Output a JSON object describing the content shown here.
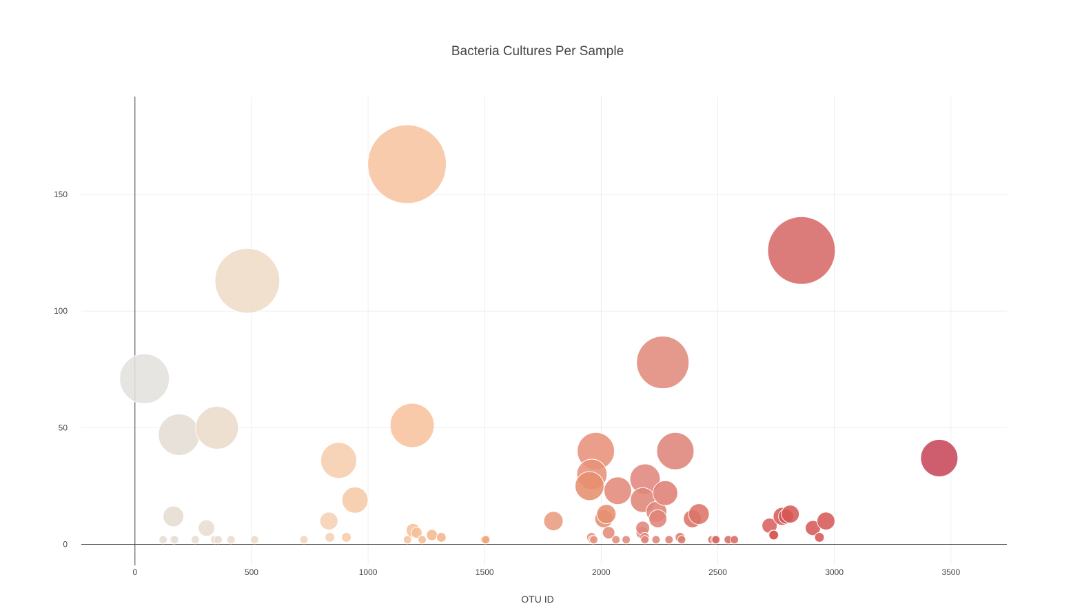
{
  "chart_data": {
    "type": "scatter",
    "title": "Bacteria Cultures Per Sample",
    "xlabel": "OTU ID",
    "ylabel": "",
    "xlim": [
      -230,
      3740
    ],
    "ylim": [
      -9,
      192
    ],
    "xticks": [
      0,
      500,
      1000,
      1500,
      2000,
      2500,
      3000,
      3500
    ],
    "yticks": [
      0,
      50,
      100,
      150
    ],
    "grid": true,
    "legend": "none",
    "marker_style": "bubble",
    "colorscale_extremes": [
      "#e6e6e6",
      "#c0304a"
    ],
    "points": [
      {
        "x": 41,
        "y": 71,
        "r": 36,
        "color": "#e3e1de"
      },
      {
        "x": 165,
        "y": 12,
        "r": 15,
        "color": "#e6ddd3"
      },
      {
        "x": 189,
        "y": 47,
        "r": 30,
        "color": "#e5ddd4"
      },
      {
        "x": 307,
        "y": 7,
        "r": 12,
        "color": "#e9ddd1"
      },
      {
        "x": 352,
        "y": 50,
        "r": 31,
        "color": "#ecdcca"
      },
      {
        "x": 482,
        "y": 113,
        "r": 47,
        "color": "#f0dcc8"
      },
      {
        "x": 121,
        "y": 2,
        "r": 6,
        "color": "#e7ded5"
      },
      {
        "x": 165,
        "y": 2,
        "r": 6,
        "color": "#e7ded5"
      },
      {
        "x": 170,
        "y": 2,
        "r": 6,
        "color": "#e7ded5"
      },
      {
        "x": 259,
        "y": 2,
        "r": 6,
        "color": "#e8ddd2"
      },
      {
        "x": 342,
        "y": 2,
        "r": 6,
        "color": "#eadccf"
      },
      {
        "x": 357,
        "y": 2,
        "r": 6,
        "color": "#eadccf"
      },
      {
        "x": 412,
        "y": 2,
        "r": 6,
        "color": "#ecdbcc"
      },
      {
        "x": 513,
        "y": 2,
        "r": 6,
        "color": "#eed9c7"
      },
      {
        "x": 725,
        "y": 2,
        "r": 6,
        "color": "#f2d5bd"
      },
      {
        "x": 832,
        "y": 10,
        "r": 13,
        "color": "#f5d0b4"
      },
      {
        "x": 836,
        "y": 3,
        "r": 7,
        "color": "#f5d0b4"
      },
      {
        "x": 874,
        "y": 36,
        "r": 26,
        "color": "#f6cdae"
      },
      {
        "x": 907,
        "y": 3,
        "r": 7,
        "color": "#f6cca9"
      },
      {
        "x": 944,
        "y": 19,
        "r": 19,
        "color": "#f6caa7"
      },
      {
        "x": 1167,
        "y": 163,
        "r": 57,
        "color": "#f7c4a1"
      },
      {
        "x": 1169,
        "y": 2,
        "r": 6,
        "color": "#f7c4a1"
      },
      {
        "x": 1189,
        "y": 51,
        "r": 32,
        "color": "#f7c39e"
      },
      {
        "x": 1193,
        "y": 6,
        "r": 10,
        "color": "#f6c19b"
      },
      {
        "x": 1208,
        "y": 5,
        "r": 8,
        "color": "#f6bf97"
      },
      {
        "x": 1232,
        "y": 2,
        "r": 6,
        "color": "#f6bc94"
      },
      {
        "x": 1274,
        "y": 4,
        "r": 8,
        "color": "#f5b890"
      },
      {
        "x": 1314,
        "y": 3,
        "r": 7,
        "color": "#f4b58c"
      },
      {
        "x": 1500,
        "y": 2,
        "r": 6,
        "color": "#f0a77a"
      },
      {
        "x": 1505,
        "y": 2,
        "r": 6,
        "color": "#f0a77a"
      },
      {
        "x": 1795,
        "y": 10,
        "r": 14,
        "color": "#e99c7e"
      },
      {
        "x": 1958,
        "y": 3,
        "r": 7,
        "color": "#e79480"
      },
      {
        "x": 1962,
        "y": 2,
        "r": 6,
        "color": "#e79480"
      },
      {
        "x": 1968,
        "y": 2,
        "r": 6,
        "color": "#e79480"
      },
      {
        "x": 1977,
        "y": 40,
        "r": 27,
        "color": "#e8927a"
      },
      {
        "x": 1960,
        "y": 30,
        "r": 22,
        "color": "#e8927a"
      },
      {
        "x": 1950,
        "y": 25,
        "r": 21,
        "color": "#e6906e"
      },
      {
        "x": 2011,
        "y": 11,
        "r": 13,
        "color": "#e58f71"
      },
      {
        "x": 2022,
        "y": 13,
        "r": 14,
        "color": "#e58f71"
      },
      {
        "x": 2032,
        "y": 5,
        "r": 9,
        "color": "#e38c76"
      },
      {
        "x": 2063,
        "y": 2,
        "r": 6,
        "color": "#e38c76"
      },
      {
        "x": 2071,
        "y": 23,
        "r": 20,
        "color": "#e38a7a"
      },
      {
        "x": 2107,
        "y": 2,
        "r": 6,
        "color": "#e18a7a"
      },
      {
        "x": 2176,
        "y": 5,
        "r": 9,
        "color": "#e0887c"
      },
      {
        "x": 2178,
        "y": 7,
        "r": 10,
        "color": "#e0887c"
      },
      {
        "x": 2186,
        "y": 3,
        "r": 7,
        "color": "#e0867a"
      },
      {
        "x": 2187,
        "y": 2,
        "r": 6,
        "color": "#e0867a"
      },
      {
        "x": 2188,
        "y": 28,
        "r": 22,
        "color": "#e0887e"
      },
      {
        "x": 2178,
        "y": 19,
        "r": 18,
        "color": "#e0867a"
      },
      {
        "x": 2235,
        "y": 2,
        "r": 6,
        "color": "#df857a"
      },
      {
        "x": 2237,
        "y": 14,
        "r": 15,
        "color": "#df8478"
      },
      {
        "x": 2243,
        "y": 11,
        "r": 13,
        "color": "#df8478"
      },
      {
        "x": 2264,
        "y": 78,
        "r": 38,
        "color": "#e08b7c"
      },
      {
        "x": 2275,
        "y": 22,
        "r": 18,
        "color": "#df8074"
      },
      {
        "x": 2291,
        "y": 2,
        "r": 6,
        "color": "#de8075"
      },
      {
        "x": 2318,
        "y": 40,
        "r": 27,
        "color": "#df857a"
      },
      {
        "x": 2338,
        "y": 3,
        "r": 7,
        "color": "#dd7c6f"
      },
      {
        "x": 2345,
        "y": 2,
        "r": 6,
        "color": "#dd7c6f"
      },
      {
        "x": 2391,
        "y": 11,
        "r": 13,
        "color": "#dc7466"
      },
      {
        "x": 2419,
        "y": 13,
        "r": 15,
        "color": "#dc7466"
      },
      {
        "x": 2475,
        "y": 2,
        "r": 6,
        "color": "#d96b63"
      },
      {
        "x": 2487,
        "y": 2,
        "r": 6,
        "color": "#d96b63"
      },
      {
        "x": 2492,
        "y": 2,
        "r": 6,
        "color": "#d96b63"
      },
      {
        "x": 2545,
        "y": 2,
        "r": 6,
        "color": "#d96a62"
      },
      {
        "x": 2571,
        "y": 2,
        "r": 6,
        "color": "#d96a62"
      },
      {
        "x": 2722,
        "y": 8,
        "r": 11,
        "color": "#d8615d"
      },
      {
        "x": 2737,
        "y": 4,
        "r": 7,
        "color": "#d65a58"
      },
      {
        "x": 2740,
        "y": 4,
        "r": 7,
        "color": "#d65a58"
      },
      {
        "x": 2776,
        "y": 12,
        "r": 13,
        "color": "#d75c58"
      },
      {
        "x": 2793,
        "y": 12,
        "r": 11,
        "color": "#d45056"
      },
      {
        "x": 2811,
        "y": 13,
        "r": 13,
        "color": "#d65a58"
      },
      {
        "x": 2859,
        "y": 126,
        "r": 49,
        "color": "#d76a68"
      },
      {
        "x": 2908,
        "y": 7,
        "r": 11,
        "color": "#d65a58"
      },
      {
        "x": 2936,
        "y": 3,
        "r": 7,
        "color": "#d65656"
      },
      {
        "x": 2964,
        "y": 10,
        "r": 13,
        "color": "#d65a58"
      },
      {
        "x": 3450,
        "y": 37,
        "r": 27,
        "color": "#c7485a"
      }
    ]
  }
}
